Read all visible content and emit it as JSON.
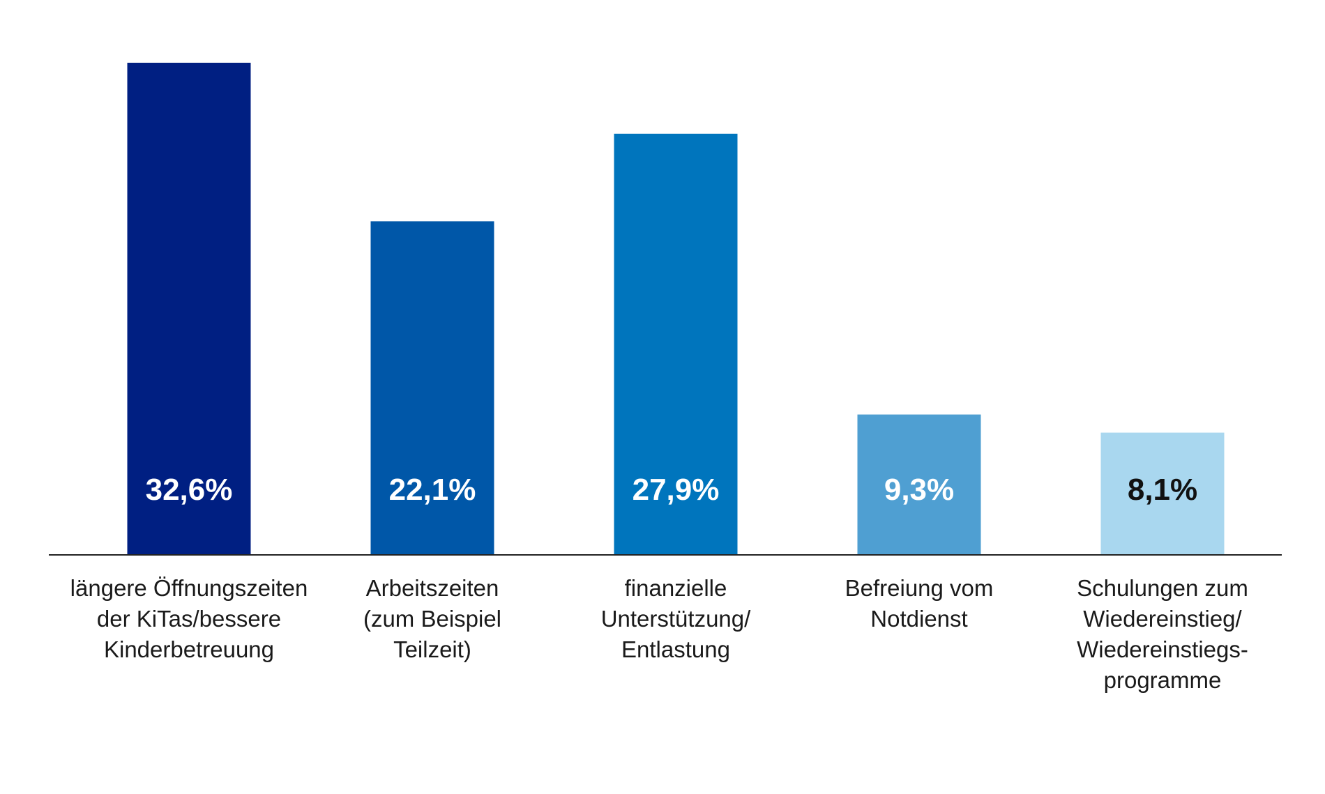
{
  "chart_data": {
    "type": "bar",
    "categories": [
      [
        "längere Öffnungszeiten",
        "der KiTas/bessere",
        "Kinderbetreuung"
      ],
      [
        "Arbeitszeiten",
        "(zum Beispiel",
        "Teilzeit)"
      ],
      [
        "finanzielle",
        "Unterstützung/",
        "Entlastung"
      ],
      [
        "Befreiung vom",
        "Notdienst"
      ],
      [
        "Schulungen zum",
        "Wiedereinstieg/",
        "Wiedereinstiegs-",
        "programme"
      ]
    ],
    "values": [
      32.6,
      22.1,
      27.9,
      9.3,
      8.1
    ],
    "value_labels": [
      "32,6%",
      "22,1%",
      "27,9%",
      "9,3%",
      "8,1%"
    ],
    "bar_colors": [
      "#001f82",
      "#0057a8",
      "#0075bd",
      "#4f9fd2",
      "#a9d7ef"
    ],
    "value_label_colors": [
      "#ffffff",
      "#ffffff",
      "#ffffff",
      "#ffffff",
      "#111111"
    ],
    "title": "",
    "xlabel": "",
    "ylabel": "",
    "ylim": [
      0,
      32.6
    ],
    "grid": false,
    "legend": "none"
  }
}
